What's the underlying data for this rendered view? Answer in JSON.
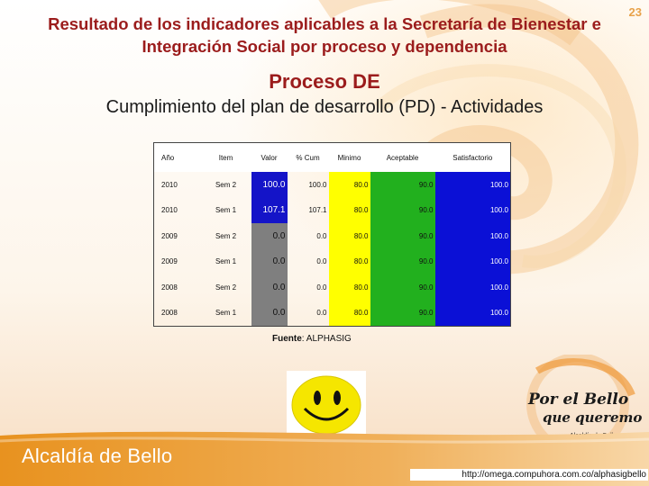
{
  "page_number": "23",
  "title": "Resultado de los indicadores aplicables a la Secretaría de Bienestar e Integración Social  por proceso y dependencia",
  "subtitle": "Proceso DE",
  "heading": "Cumplimiento del plan de desarrollo (PD) - Actividades",
  "table": {
    "headers": [
      "Año",
      "Item",
      "Valor",
      "% Cum",
      "Minimo",
      "Aceptable",
      "Satisfactorio"
    ],
    "rows": [
      {
        "anio": "2010",
        "item": "Sem 2",
        "valor": "100.0",
        "cum": "100.0",
        "minimo": "80.0",
        "aceptable": "90.0",
        "satisfactorio": "100.0"
      },
      {
        "anio": "2010",
        "item": "Sem 1",
        "valor": "107.1",
        "cum": "107.1",
        "minimo": "80.0",
        "aceptable": "90.0",
        "satisfactorio": "100.0"
      },
      {
        "anio": "2009",
        "item": "Sem 2",
        "valor": "0.0",
        "cum": "0.0",
        "minimo": "80.0",
        "aceptable": "90.0",
        "satisfactorio": "100.0"
      },
      {
        "anio": "2009",
        "item": "Sem 1",
        "valor": "0.0",
        "cum": "0.0",
        "minimo": "80.0",
        "aceptable": "90.0",
        "satisfactorio": "100.0"
      },
      {
        "anio": "2008",
        "item": "Sem 2",
        "valor": "0.0",
        "cum": "0.0",
        "minimo": "80.0",
        "aceptable": "90.0",
        "satisfactorio": "100.0"
      },
      {
        "anio": "2008",
        "item": "Sem 1",
        "valor": "0.0",
        "cum": "0.0",
        "minimo": "80.0",
        "aceptable": "90.0",
        "satisfactorio": "100.0"
      }
    ]
  },
  "source": {
    "label": "Fuente",
    "value": ": ALPHASIG"
  },
  "logo": {
    "line1": "Por el Bello",
    "line2": "que queremos",
    "line3": "Alcaldía de Bello"
  },
  "brand": "Alcaldía de Bello",
  "url": "http://omega.compuhora.com.co/alphasigbello",
  "colors": {
    "title": "#9b1c1c",
    "valor_grey": "#7f7f7f",
    "valor_blue": "#1414c8",
    "minimo": "#ffff00",
    "aceptable": "#22b01e",
    "satisfactorio": "#0b10d6",
    "brand_band": "#e8921f"
  }
}
